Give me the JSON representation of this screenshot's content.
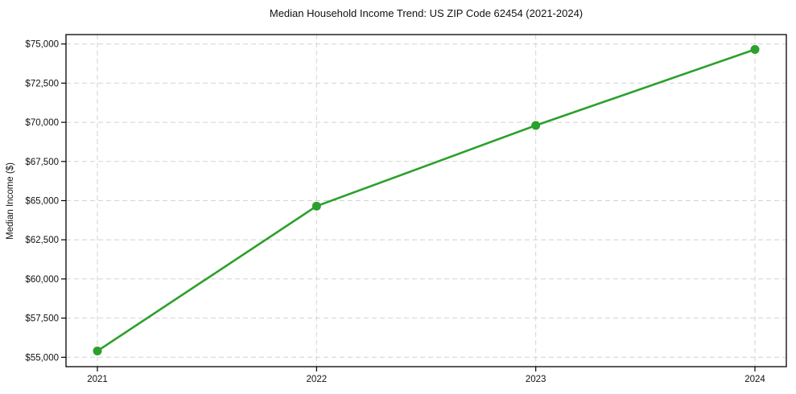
{
  "chart_data": {
    "type": "line",
    "title": "Median Household Income Trend: US ZIP Code 62454 (2021-2024)",
    "xlabel": "",
    "ylabel": "Median Income ($)",
    "categories": [
      "2021",
      "2022",
      "2023",
      "2024"
    ],
    "values": [
      55400,
      64650,
      69800,
      74650
    ],
    "ylim": [
      54400,
      75600
    ],
    "yticks": [
      55000,
      57500,
      60000,
      62500,
      65000,
      67500,
      70000,
      72500,
      75000
    ],
    "ytick_labels": [
      "$55,000",
      "$57,500",
      "$60,000",
      "$62,500",
      "$65,000",
      "$67,500",
      "$70,000",
      "$72,500",
      "$75,000"
    ],
    "grid": "dashed, horizontal and vertical at ticks",
    "legend_position": "none",
    "line_color": "#2ca02c",
    "marker": "circle",
    "grid_color": "#d2d2d2",
    "spine_color": "#000000",
    "text_color": "#111111",
    "background_color": "#ffffff"
  }
}
